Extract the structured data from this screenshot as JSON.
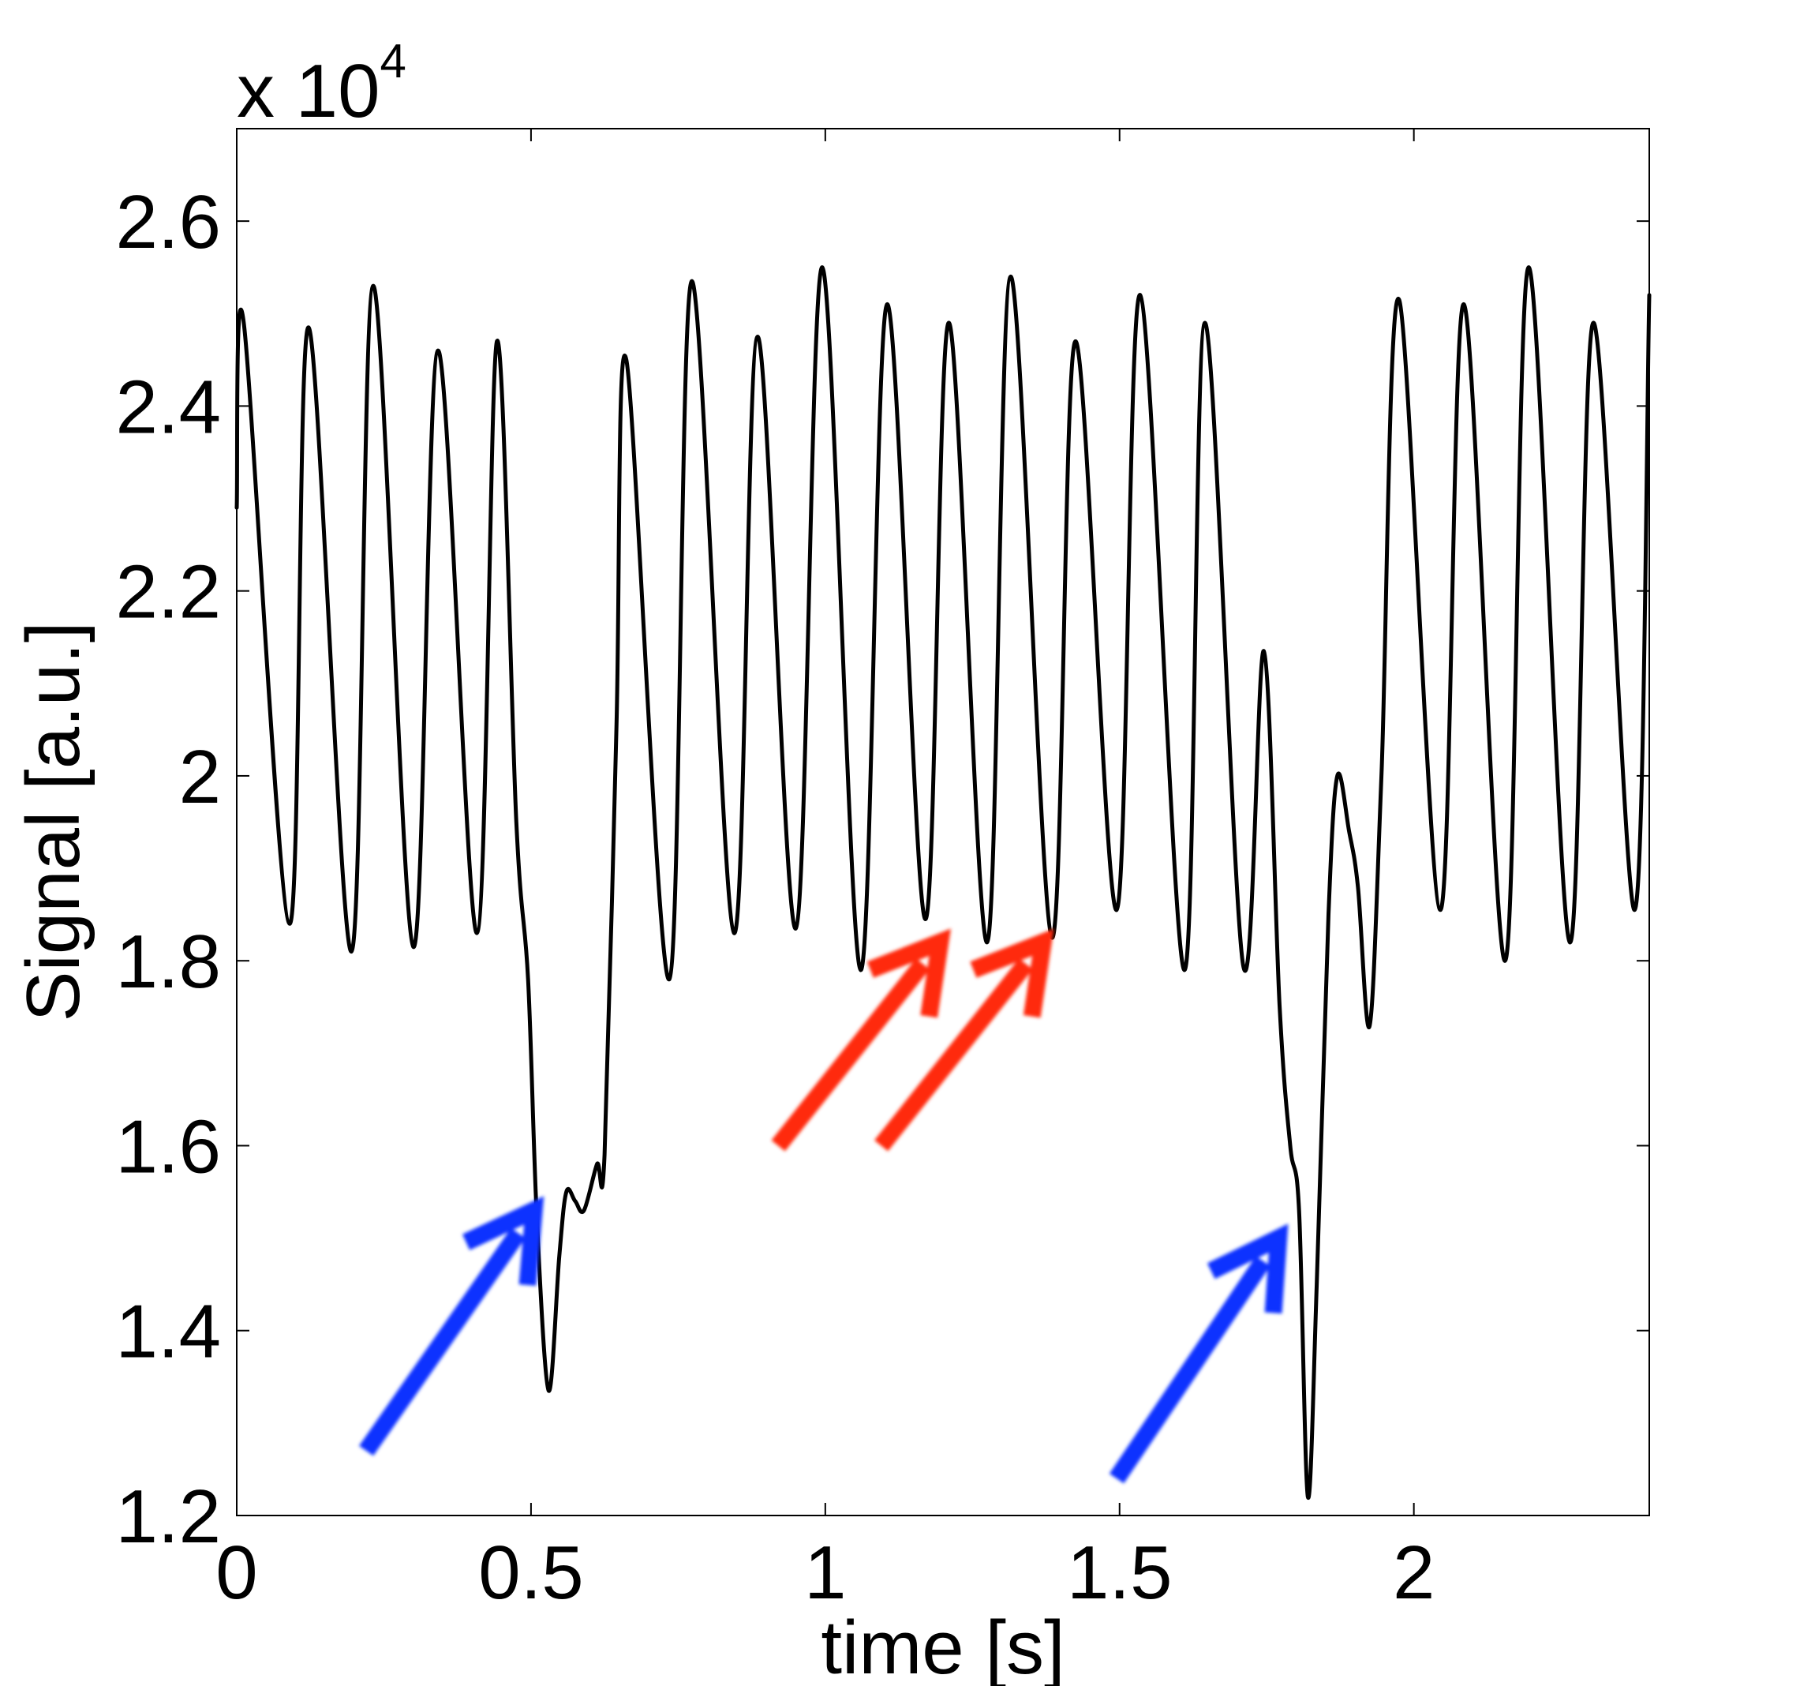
{
  "chart_data": {
    "type": "line",
    "xlabel": "time [s]",
    "ylabel": "Signal [a.u.]",
    "y_multiplier": {
      "base": "x 10",
      "exponent": "4"
    },
    "xlim": [
      0,
      2.4
    ],
    "ylim": [
      12000,
      27000
    ],
    "xticks": [
      0,
      0.5,
      1,
      1.5,
      2
    ],
    "xtick_labels": [
      "0",
      "0.5",
      "1",
      "1.5",
      "2"
    ],
    "yticks": [
      12000,
      14000,
      16000,
      18000,
      20000,
      22000,
      24000,
      26000
    ],
    "ytick_labels": [
      "1.2",
      "1.4",
      "1.6",
      "1.8",
      "2",
      "2.2",
      "2.4",
      "2.6"
    ],
    "grid": false,
    "line_color": "#000000",
    "series": [
      {
        "points": [
          [
            0.0,
            22900
          ],
          [
            0.012,
            24900
          ],
          [
            0.09,
            18400
          ],
          [
            0.122,
            24850
          ],
          [
            0.195,
            18100
          ],
          [
            0.232,
            25300
          ],
          [
            0.3,
            18150
          ],
          [
            0.342,
            24600
          ],
          [
            0.408,
            18300
          ],
          [
            0.442,
            24700
          ],
          [
            0.475,
            19500
          ],
          [
            0.495,
            17800
          ],
          [
            0.51,
            15200
          ],
          [
            0.53,
            13350
          ],
          [
            0.548,
            14800
          ],
          [
            0.56,
            15500
          ],
          [
            0.575,
            15400
          ],
          [
            0.59,
            15300
          ],
          [
            0.612,
            15800
          ],
          [
            0.625,
            15900
          ],
          [
            0.645,
            20500
          ],
          [
            0.662,
            24500
          ],
          [
            0.735,
            17800
          ],
          [
            0.773,
            25350
          ],
          [
            0.845,
            18300
          ],
          [
            0.885,
            24750
          ],
          [
            0.95,
            18350
          ],
          [
            0.995,
            25500
          ],
          [
            1.06,
            17900
          ],
          [
            1.105,
            25100
          ],
          [
            1.17,
            18450
          ],
          [
            1.21,
            24900
          ],
          [
            1.275,
            18200
          ],
          [
            1.315,
            25400
          ],
          [
            1.385,
            18250
          ],
          [
            1.425,
            24700
          ],
          [
            1.495,
            18550
          ],
          [
            1.535,
            25200
          ],
          [
            1.61,
            17900
          ],
          [
            1.645,
            24900
          ],
          [
            1.71,
            17950
          ],
          [
            1.745,
            21350
          ],
          [
            1.772,
            17500
          ],
          [
            1.79,
            16000
          ],
          [
            1.805,
            15300
          ],
          [
            1.82,
            12200
          ],
          [
            1.835,
            14500
          ],
          [
            1.855,
            18500
          ],
          [
            1.87,
            20000
          ],
          [
            1.89,
            19400
          ],
          [
            1.905,
            18800
          ],
          [
            1.925,
            17300
          ],
          [
            1.945,
            20000
          ],
          [
            1.975,
            25150
          ],
          [
            2.045,
            18550
          ],
          [
            2.085,
            25100
          ],
          [
            2.155,
            18000
          ],
          [
            2.195,
            25500
          ],
          [
            2.265,
            18200
          ],
          [
            2.305,
            24900
          ],
          [
            2.375,
            18550
          ],
          [
            2.4,
            25200
          ]
        ]
      }
    ]
  },
  "annotations": {
    "blue_arrow_color": "#1030ff",
    "red_arrow_color": "#ff2a10",
    "arrows": [
      {
        "color": "blue",
        "from": [
          0.22,
          12700
        ],
        "to": [
          0.505,
          15300
        ]
      },
      {
        "color": "red",
        "from": [
          0.92,
          16000
        ],
        "to": [
          1.195,
          18200
        ]
      },
      {
        "color": "red",
        "from": [
          1.095,
          16000
        ],
        "to": [
          1.37,
          18200
        ]
      },
      {
        "color": "blue",
        "from": [
          1.495,
          12400
        ],
        "to": [
          1.77,
          15000
        ]
      }
    ]
  }
}
